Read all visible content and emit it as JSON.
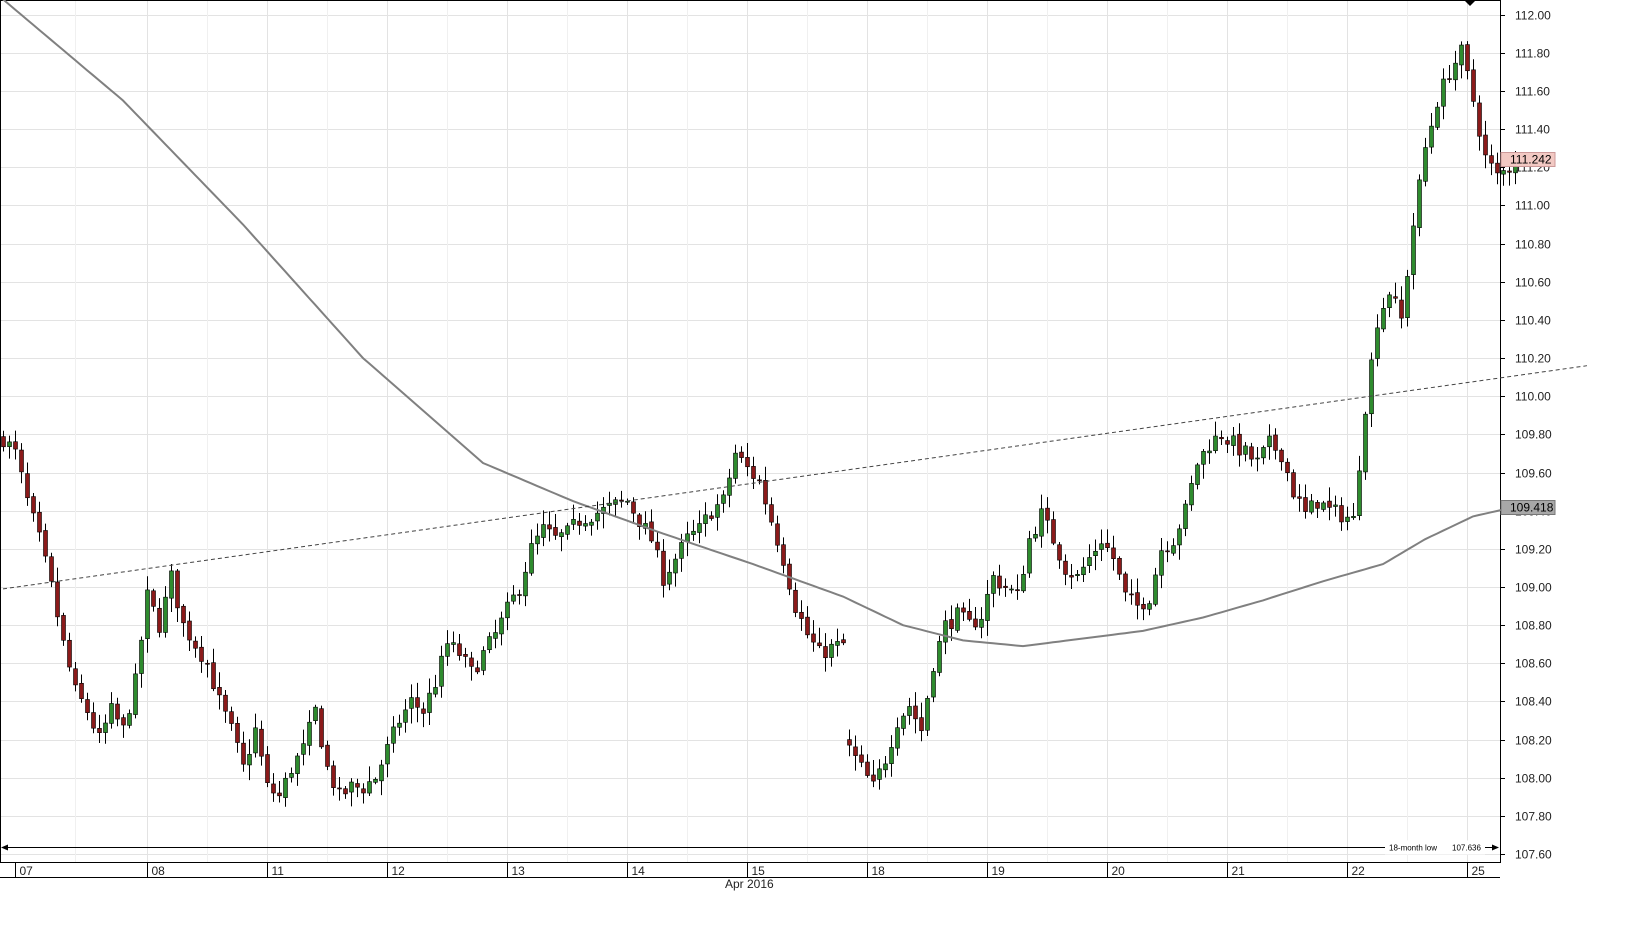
{
  "chart_data": {
    "type": "candlestick",
    "month_label": "Apr 2016",
    "y_ticks": [
      "107.60",
      "107.80",
      "108.00",
      "108.20",
      "108.40",
      "108.60",
      "108.80",
      "109.00",
      "109.20",
      "109.40",
      "109.60",
      "109.80",
      "110.00",
      "110.20",
      "110.40",
      "110.60",
      "110.80",
      "111.00",
      "111.20",
      "111.40",
      "111.60",
      "111.80",
      "112.00"
    ],
    "ylim": [
      107.48,
      112.04
    ],
    "x_ticks": [
      {
        "label": "07",
        "index": 0
      },
      {
        "label": "08",
        "index": 24
      },
      {
        "label": "11",
        "index": 44
      },
      {
        "label": "12",
        "index": 64
      },
      {
        "label": "13",
        "index": 84
      },
      {
        "label": "14",
        "index": 104
      },
      {
        "label": "15",
        "index": 124
      },
      {
        "label": "18",
        "index": 144
      },
      {
        "label": "19",
        "index": 164
      },
      {
        "label": "20",
        "index": 184
      },
      {
        "label": "21",
        "index": 204
      },
      {
        "label": "22",
        "index": 224
      },
      {
        "label": "25",
        "index": 244
      }
    ],
    "n_slots": 264,
    "current_price": "111.242",
    "ma_value": "109.418",
    "support": {
      "label": "18-month low",
      "value": "107.636",
      "y": 107.636
    },
    "trendline": {
      "x1": 0,
      "y1": 108.99,
      "x2": 264,
      "y2": 110.16
    },
    "price_anchors": [
      [
        0,
        109.78
      ],
      [
        2,
        109.7
      ],
      [
        4,
        109.45
      ],
      [
        6,
        109.25
      ],
      [
        8,
        109.0
      ],
      [
        10,
        108.7
      ],
      [
        12,
        108.45
      ],
      [
        14,
        108.35
      ],
      [
        16,
        108.2
      ],
      [
        18,
        108.35
      ],
      [
        20,
        108.25
      ],
      [
        22,
        108.5
      ],
      [
        24,
        108.95
      ],
      [
        26,
        108.8
      ],
      [
        28,
        109.05
      ],
      [
        30,
        108.8
      ],
      [
        32,
        108.7
      ],
      [
        34,
        108.6
      ],
      [
        36,
        108.4
      ],
      [
        38,
        108.25
      ],
      [
        40,
        108.05
      ],
      [
        42,
        108.25
      ],
      [
        44,
        107.95
      ],
      [
        46,
        107.9
      ],
      [
        48,
        108.05
      ],
      [
        50,
        108.15
      ],
      [
        52,
        108.35
      ],
      [
        54,
        108.05
      ],
      [
        56,
        107.9
      ],
      [
        58,
        107.95
      ],
      [
        60,
        107.95
      ],
      [
        62,
        108.0
      ],
      [
        64,
        108.15
      ],
      [
        66,
        108.3
      ],
      [
        68,
        108.4
      ],
      [
        70,
        108.35
      ],
      [
        72,
        108.5
      ],
      [
        74,
        108.7
      ],
      [
        76,
        108.65
      ],
      [
        78,
        108.55
      ],
      [
        80,
        108.65
      ],
      [
        82,
        108.75
      ],
      [
        84,
        108.88
      ],
      [
        86,
        109.0
      ],
      [
        88,
        109.2
      ],
      [
        90,
        109.3
      ],
      [
        92,
        109.25
      ],
      [
        94,
        109.28
      ],
      [
        96,
        109.35
      ],
      [
        98,
        109.38
      ],
      [
        100,
        109.4
      ],
      [
        102,
        109.43
      ],
      [
        104,
        109.45
      ],
      [
        106,
        109.35
      ],
      [
        108,
        109.25
      ],
      [
        110,
        109.05
      ],
      [
        112,
        109.15
      ],
      [
        114,
        109.25
      ],
      [
        116,
        109.3
      ],
      [
        118,
        109.4
      ],
      [
        120,
        109.45
      ],
      [
        122,
        109.7
      ],
      [
        124,
        109.62
      ],
      [
        126,
        109.55
      ],
      [
        128,
        109.35
      ],
      [
        130,
        109.15
      ],
      [
        132,
        108.9
      ],
      [
        134,
        108.75
      ],
      [
        136,
        108.65
      ],
      [
        138,
        108.68
      ],
      [
        140,
        108.7
      ],
      [
        141,
        108.15
      ],
      [
        143,
        108.05
      ],
      [
        145,
        107.95
      ],
      [
        147,
        108.1
      ],
      [
        149,
        108.3
      ],
      [
        151,
        108.38
      ],
      [
        153,
        108.25
      ],
      [
        155,
        108.6
      ],
      [
        157,
        108.8
      ],
      [
        159,
        108.85
      ],
      [
        161,
        108.8
      ],
      [
        163,
        108.85
      ],
      [
        165,
        109.05
      ],
      [
        167,
        109.0
      ],
      [
        169,
        108.95
      ],
      [
        171,
        109.25
      ],
      [
        173,
        109.38
      ],
      [
        175,
        109.25
      ],
      [
        177,
        109.1
      ],
      [
        179,
        109.05
      ],
      [
        181,
        109.15
      ],
      [
        183,
        109.25
      ],
      [
        185,
        109.15
      ],
      [
        187,
        108.95
      ],
      [
        189,
        108.9
      ],
      [
        191,
        108.95
      ],
      [
        193,
        109.2
      ],
      [
        195,
        109.25
      ],
      [
        197,
        109.4
      ],
      [
        199,
        109.65
      ],
      [
        201,
        109.75
      ],
      [
        203,
        109.8
      ],
      [
        205,
        109.75
      ],
      [
        207,
        109.7
      ],
      [
        209,
        109.65
      ],
      [
        211,
        109.75
      ],
      [
        213,
        109.7
      ],
      [
        215,
        109.5
      ],
      [
        217,
        109.38
      ],
      [
        219,
        109.45
      ],
      [
        221,
        109.4
      ],
      [
        223,
        109.38
      ],
      [
        225,
        109.35
      ],
      [
        227,
        109.95
      ],
      [
        229,
        110.4
      ],
      [
        231,
        110.55
      ],
      [
        233,
        110.4
      ],
      [
        235,
        110.9
      ],
      [
        237,
        111.3
      ],
      [
        239,
        111.55
      ],
      [
        241,
        111.7
      ],
      [
        243,
        111.8
      ],
      [
        245,
        111.55
      ],
      [
        247,
        111.25
      ],
      [
        249,
        111.15
      ],
      [
        251,
        111.2
      ],
      [
        252,
        111.24
      ]
    ],
    "ma_anchors": [
      [
        0,
        112.08
      ],
      [
        20,
        111.55
      ],
      [
        40,
        110.9
      ],
      [
        60,
        110.2
      ],
      [
        80,
        109.65
      ],
      [
        95,
        109.45
      ],
      [
        110,
        109.28
      ],
      [
        125,
        109.12
      ],
      [
        140,
        108.95
      ],
      [
        150,
        108.8
      ],
      [
        160,
        108.72
      ],
      [
        170,
        108.69
      ],
      [
        180,
        108.73
      ],
      [
        190,
        108.77
      ],
      [
        200,
        108.84
      ],
      [
        210,
        108.93
      ],
      [
        220,
        109.03
      ],
      [
        230,
        109.12
      ],
      [
        237,
        109.25
      ],
      [
        245,
        109.37
      ],
      [
        252,
        109.42
      ]
    ],
    "colors": {
      "up": "#2e8b2e",
      "down": "#8b1a1a",
      "ma": "#808080",
      "grid": "#e3e3e3",
      "tag_current": "#f2c9c3",
      "tag_ma": "#a8a8a8"
    }
  }
}
